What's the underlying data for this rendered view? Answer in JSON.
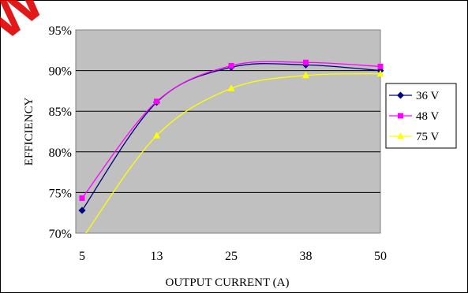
{
  "chart_data": {
    "type": "line",
    "watermark": "W",
    "xlabel": "OUTPUT CURRENT (A)",
    "ylabel": "EFFICIENCY",
    "categories": [
      "5",
      "13",
      "25",
      "38",
      "50"
    ],
    "ylim": [
      70,
      95
    ],
    "yticks": [
      "70%",
      "75%",
      "80%",
      "85%",
      "90%",
      "95%"
    ],
    "grid": true,
    "legend_position": "right",
    "plot_background": "#c0c0c0",
    "series": [
      {
        "name": "36 V",
        "color": "#000080",
        "marker": "diamond",
        "values": [
          72.8,
          86.1,
          90.4,
          90.7,
          90.0
        ]
      },
      {
        "name": "48 V",
        "color": "#ff00ff",
        "marker": "square",
        "values": [
          74.3,
          86.2,
          90.6,
          91.0,
          90.5
        ]
      },
      {
        "name": "75 V",
        "color": "#ffff00",
        "marker": "triangle",
        "values": [
          69.3,
          82.0,
          87.8,
          89.4,
          89.6
        ]
      }
    ]
  }
}
